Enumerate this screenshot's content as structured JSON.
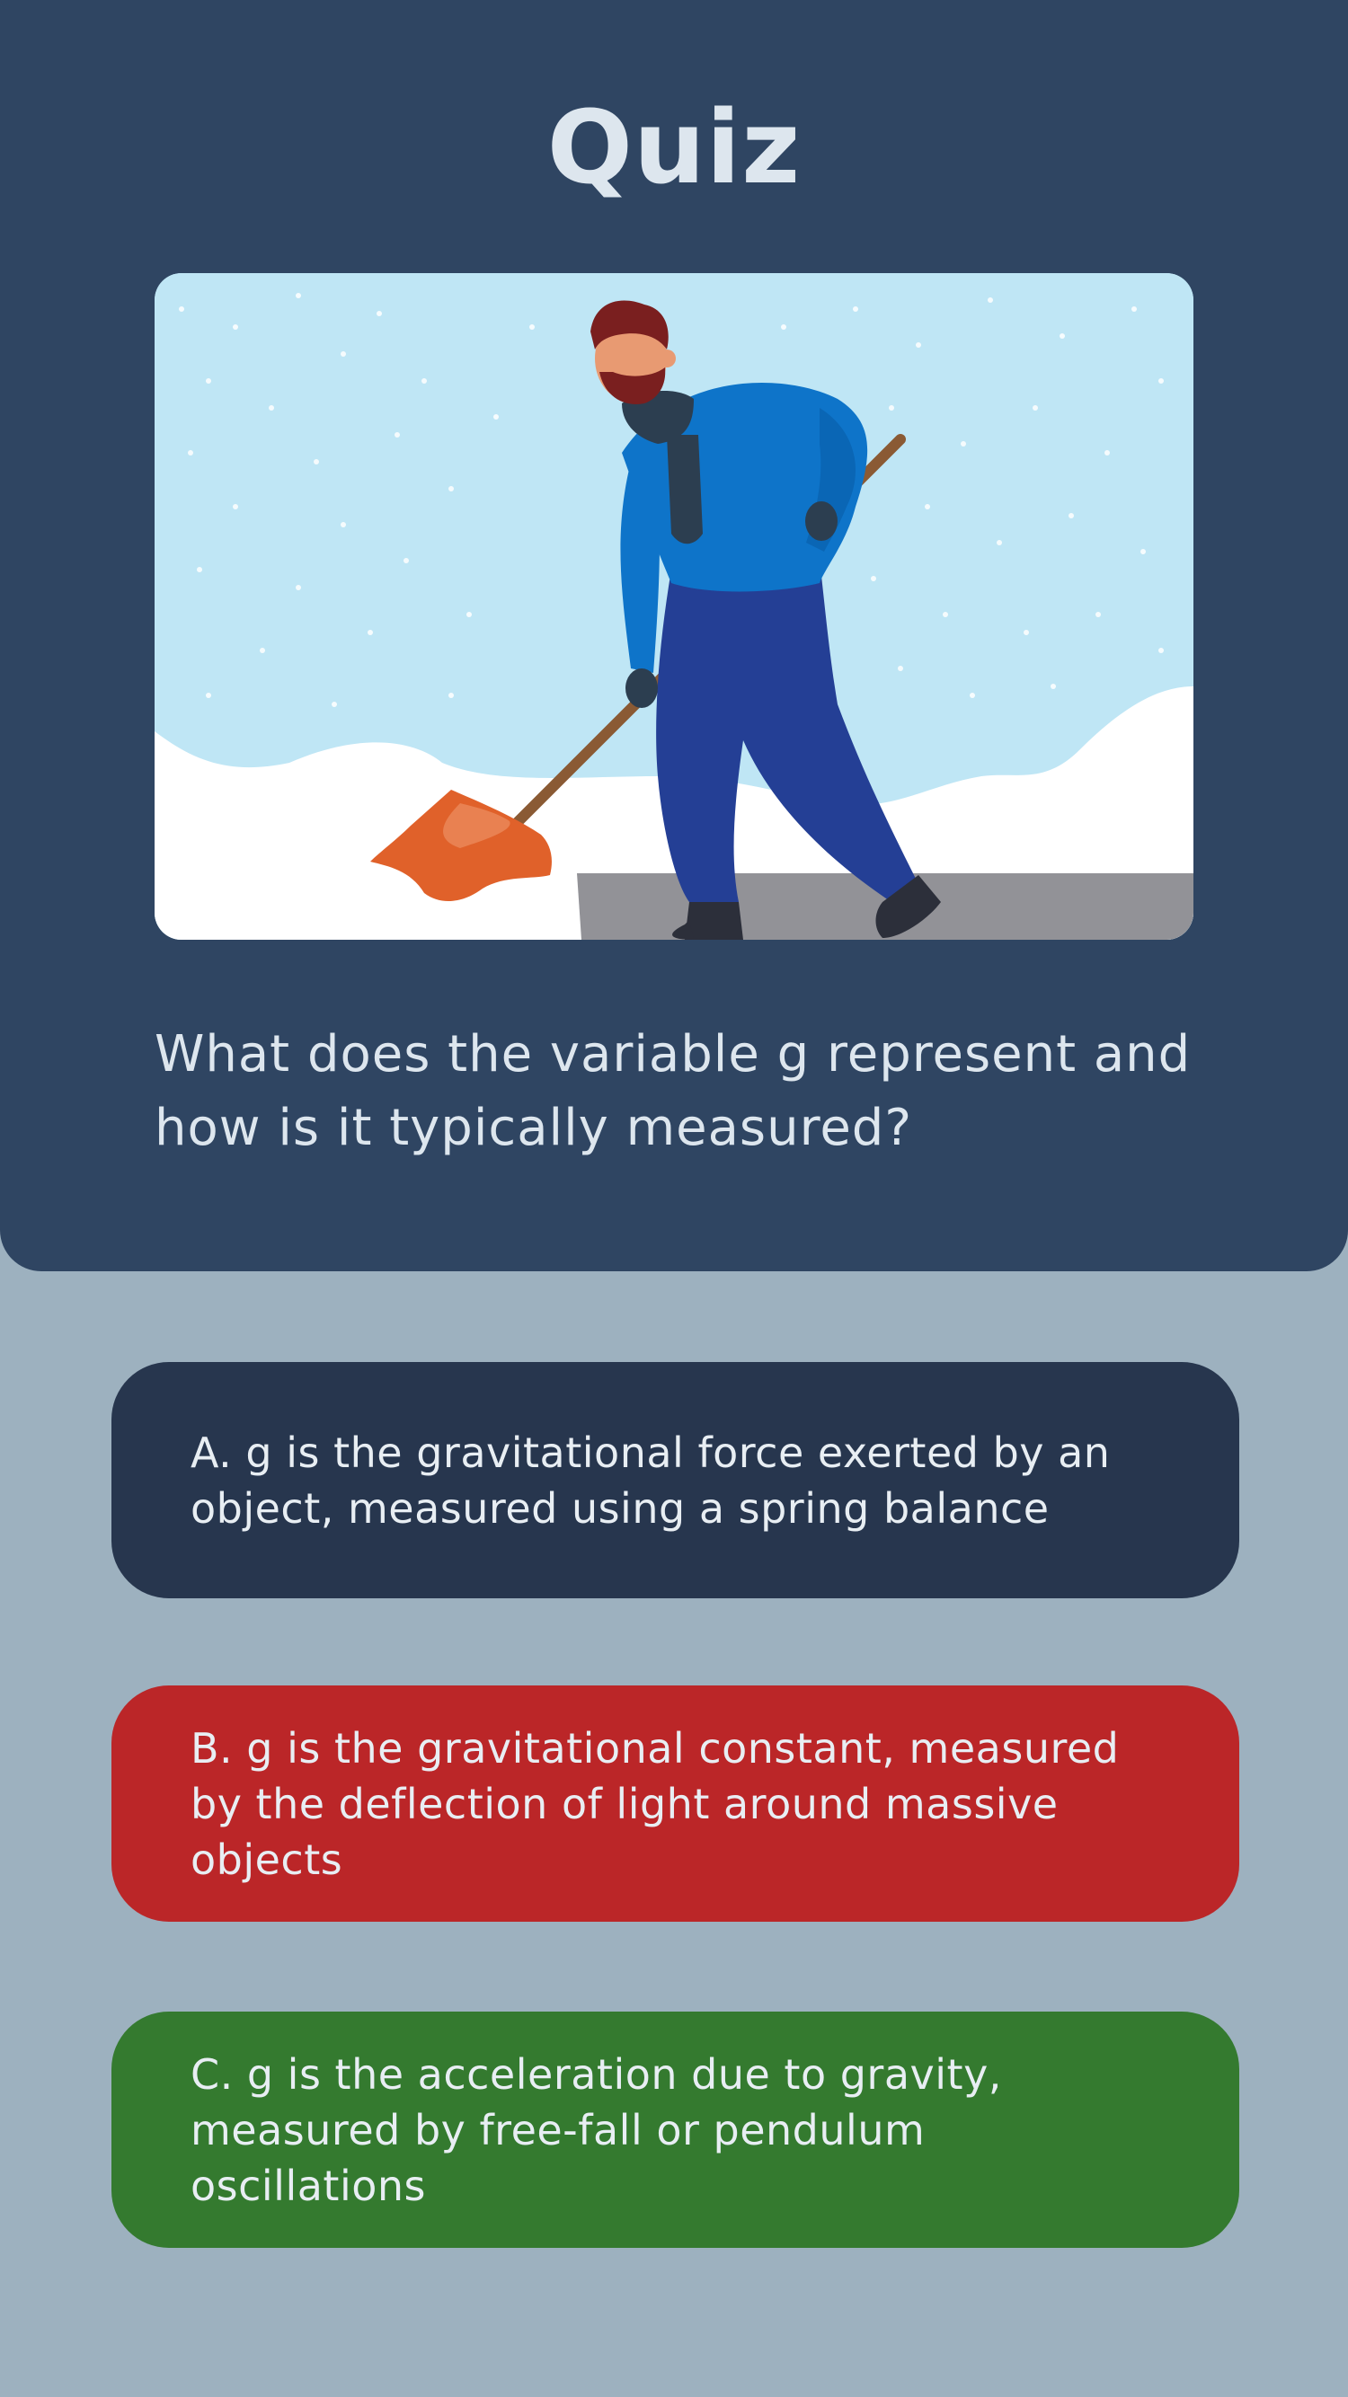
{
  "quiz": {
    "title": "Quiz",
    "illustration": {
      "icon": "man-shoveling-snow-illustration",
      "colors": {
        "sky": "#bfe6f5",
        "snow": "#ffffff",
        "road": "#929297",
        "jacket": "#0e74c9",
        "pants": "#243f95",
        "shovel": "#e0612a"
      }
    },
    "question": "What does the variable g represent and how is it typically measured?",
    "options": [
      {
        "label": "A. g is the gravitational force exerted by an object, measured using a spring balance",
        "color": "#27364e"
      },
      {
        "label": "B. g is the gravitational constant, measured by the deflection of light around massive objects",
        "color": "#bb2628"
      },
      {
        "label": "C. g is the acceleration due to gravity, measured by free-fall or pendulum oscillations",
        "color": "#347a2f"
      }
    ]
  }
}
